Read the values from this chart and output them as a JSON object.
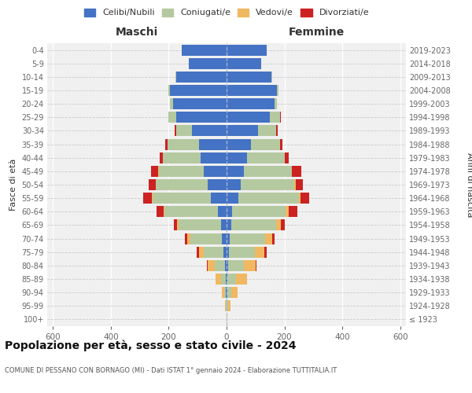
{
  "age_groups": [
    "100+",
    "95-99",
    "90-94",
    "85-89",
    "80-84",
    "75-79",
    "70-74",
    "65-69",
    "60-64",
    "55-59",
    "50-54",
    "45-49",
    "40-44",
    "35-39",
    "30-34",
    "25-29",
    "20-24",
    "15-19",
    "10-14",
    "5-9",
    "0-4"
  ],
  "birth_years": [
    "≤ 1923",
    "1924-1928",
    "1929-1933",
    "1934-1938",
    "1939-1943",
    "1944-1948",
    "1949-1953",
    "1954-1958",
    "1959-1963",
    "1964-1968",
    "1969-1973",
    "1974-1978",
    "1979-1983",
    "1984-1988",
    "1989-1993",
    "1994-1998",
    "1999-2003",
    "2004-2008",
    "2009-2013",
    "2014-2018",
    "2019-2023"
  ],
  "colors": {
    "celibi": "#4472c4",
    "coniugati": "#b5c9a0",
    "vedovi": "#f0b860",
    "divorziati": "#cc2222"
  },
  "maschi": {
    "celibi": [
      1,
      1,
      2,
      4,
      5,
      10,
      15,
      20,
      30,
      55,
      65,
      80,
      90,
      95,
      120,
      175,
      185,
      195,
      175,
      130,
      155
    ],
    "coniugati": [
      0,
      2,
      5,
      15,
      35,
      70,
      110,
      145,
      185,
      200,
      180,
      155,
      130,
      110,
      55,
      25,
      10,
      5,
      2,
      0,
      0
    ],
    "vedovi": [
      0,
      3,
      8,
      18,
      25,
      15,
      10,
      5,
      2,
      2,
      1,
      1,
      0,
      0,
      0,
      0,
      0,
      0,
      0,
      0,
      0
    ],
    "divorziati": [
      0,
      0,
      0,
      0,
      2,
      8,
      10,
      12,
      25,
      30,
      22,
      25,
      10,
      8,
      5,
      2,
      0,
      0,
      0,
      0,
      0
    ]
  },
  "femmine": {
    "celibi": [
      1,
      1,
      2,
      3,
      5,
      8,
      12,
      15,
      20,
      40,
      50,
      60,
      70,
      85,
      110,
      150,
      165,
      175,
      155,
      120,
      140
    ],
    "coniugati": [
      0,
      5,
      15,
      30,
      55,
      90,
      120,
      155,
      185,
      210,
      185,
      165,
      130,
      100,
      60,
      35,
      10,
      5,
      2,
      0,
      0
    ],
    "vedovi": [
      2,
      8,
      20,
      38,
      40,
      32,
      25,
      18,
      10,
      5,
      5,
      2,
      2,
      1,
      1,
      0,
      0,
      0,
      0,
      0,
      0
    ],
    "divorziati": [
      0,
      0,
      0,
      0,
      2,
      8,
      10,
      12,
      30,
      30,
      25,
      30,
      12,
      8,
      5,
      2,
      0,
      0,
      0,
      0,
      0
    ]
  },
  "xlim": 620,
  "title": "Popolazione per età, sesso e stato civile - 2024",
  "subtitle": "COMUNE DI PESSANO CON BORNAGO (MI) - Dati ISTAT 1° gennaio 2024 - Elaborazione TUTTITALIA.IT",
  "ylabel_left": "Fasce di età",
  "ylabel_right": "Anni di nascita",
  "xlabel_left": "Maschi",
  "xlabel_right": "Femmine",
  "bg_color": "#f0f0f0",
  "grid_color_x": "#ffffff",
  "grid_color_y": "#cccccc",
  "center_line_color": "#aabbcc",
  "tick_color": "#666666",
  "title_color": "#111111",
  "subtitle_color": "#555555",
  "label_color": "#333333"
}
